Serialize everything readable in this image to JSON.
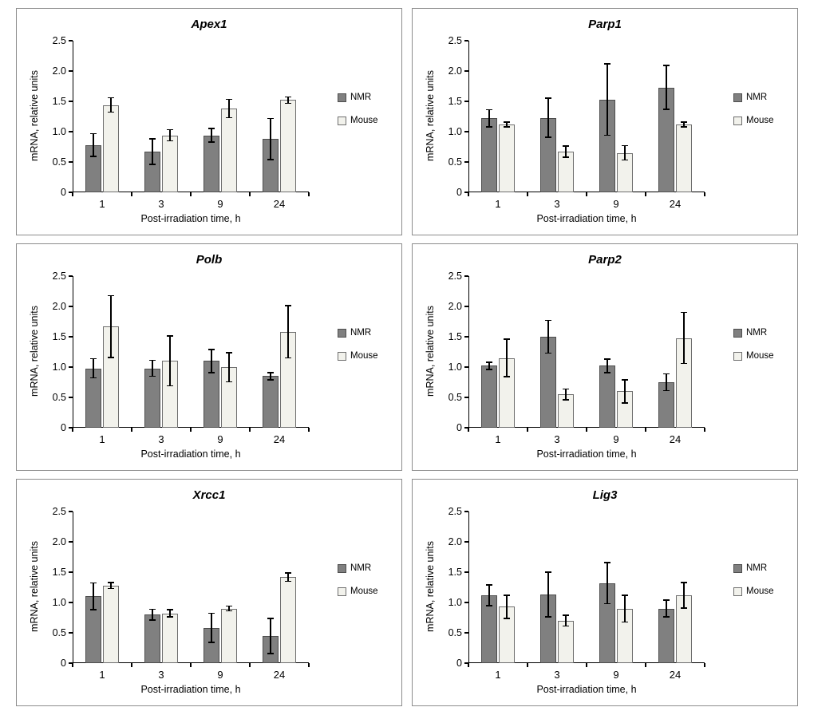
{
  "shared": {
    "ylabel": "mRNA, relative units",
    "xlabel": "Post-irradiation time, h",
    "ytick_labels": [
      "0",
      "0.5",
      "1.0",
      "1.5",
      "2.0",
      "2.5"
    ],
    "legend_labels": [
      "NMR",
      "Mouse"
    ]
  },
  "style": {
    "nmr_fill": "#808080",
    "nmr_border": "#4d4d4d",
    "mouse_fill": "#f2f2ec",
    "mouse_border": "#6e6e6e",
    "axis_color": "#000000",
    "error_bar_color": "#000000",
    "panel_border": "#8c8c8c",
    "background": "#ffffff"
  },
  "chart_data": [
    {
      "type": "bar",
      "title": "Apex1",
      "xlabel": "Post-irradiation time, h",
      "ylabel": "mRNA, relative units",
      "categories": [
        "1",
        "3",
        "9",
        "24"
      ],
      "ylim": [
        0,
        2.5
      ],
      "yticks": [
        0,
        0.5,
        1.0,
        1.5,
        2.0,
        2.5
      ],
      "grid": false,
      "legend_position": "right",
      "series": [
        {
          "name": "NMR",
          "values": [
            0.78,
            0.67,
            0.94,
            0.88
          ],
          "errors": [
            0.2,
            0.22,
            0.12,
            0.35
          ]
        },
        {
          "name": "Mouse",
          "values": [
            1.44,
            0.94,
            1.38,
            1.52
          ],
          "errors": [
            0.13,
            0.1,
            0.16,
            0.06
          ]
        }
      ]
    },
    {
      "type": "bar",
      "title": "Parp1",
      "xlabel": "Post-irradiation time, h",
      "ylabel": "mRNA, relative units",
      "categories": [
        "1",
        "3",
        "9",
        "24"
      ],
      "ylim": [
        0,
        2.5
      ],
      "yticks": [
        0,
        0.5,
        1.0,
        1.5,
        2.0,
        2.5
      ],
      "grid": false,
      "legend_position": "right",
      "series": [
        {
          "name": "NMR",
          "values": [
            1.22,
            1.23,
            1.53,
            1.73
          ],
          "errors": [
            0.15,
            0.33,
            0.6,
            0.37
          ]
        },
        {
          "name": "Mouse",
          "values": [
            1.12,
            0.67,
            0.65,
            1.12
          ],
          "errors": [
            0.05,
            0.1,
            0.13,
            0.05
          ]
        }
      ]
    },
    {
      "type": "bar",
      "title": "Polb",
      "xlabel": "Post-irradiation time, h",
      "ylabel": "mRNA, relative units",
      "categories": [
        "1",
        "3",
        "9",
        "24"
      ],
      "ylim": [
        0,
        2.5
      ],
      "yticks": [
        0,
        0.5,
        1.0,
        1.5,
        2.0,
        2.5
      ],
      "grid": false,
      "legend_position": "right",
      "series": [
        {
          "name": "NMR",
          "values": [
            0.98,
            0.98,
            1.1,
            0.85
          ],
          "errors": [
            0.17,
            0.14,
            0.2,
            0.07
          ]
        },
        {
          "name": "Mouse",
          "values": [
            1.67,
            1.1,
            1.0,
            1.58
          ],
          "errors": [
            0.52,
            0.42,
            0.25,
            0.44
          ]
        }
      ]
    },
    {
      "type": "bar",
      "title": "Parp2",
      "xlabel": "Post-irradiation time, h",
      "ylabel": "mRNA, relative units",
      "categories": [
        "1",
        "3",
        "9",
        "24"
      ],
      "ylim": [
        0,
        2.5
      ],
      "yticks": [
        0,
        0.5,
        1.0,
        1.5,
        2.0,
        2.5
      ],
      "grid": false,
      "legend_position": "right",
      "series": [
        {
          "name": "NMR",
          "values": [
            1.02,
            1.5,
            1.02,
            0.75
          ],
          "errors": [
            0.07,
            0.28,
            0.12,
            0.15
          ]
        },
        {
          "name": "Mouse",
          "values": [
            1.15,
            0.55,
            0.6,
            1.48
          ],
          "errors": [
            0.32,
            0.1,
            0.2,
            0.43
          ]
        }
      ]
    },
    {
      "type": "bar",
      "title": "Xrcc1",
      "xlabel": "Post-irradiation time, h",
      "ylabel": "mRNA, relative units",
      "categories": [
        "1",
        "3",
        "9",
        "24"
      ],
      "ylim": [
        0,
        2.5
      ],
      "yticks": [
        0,
        0.5,
        1.0,
        1.5,
        2.0,
        2.5
      ],
      "grid": false,
      "legend_position": "right",
      "series": [
        {
          "name": "NMR",
          "values": [
            1.1,
            0.8,
            0.58,
            0.45
          ],
          "errors": [
            0.23,
            0.1,
            0.25,
            0.3
          ]
        },
        {
          "name": "Mouse",
          "values": [
            1.28,
            0.82,
            0.9,
            1.42
          ],
          "errors": [
            0.06,
            0.07,
            0.05,
            0.08
          ]
        }
      ]
    },
    {
      "type": "bar",
      "title": "Lig3",
      "xlabel": "Post-irradiation time, h",
      "ylabel": "mRNA, relative units",
      "categories": [
        "1",
        "3",
        "9",
        "24"
      ],
      "ylim": [
        0,
        2.5
      ],
      "yticks": [
        0,
        0.5,
        1.0,
        1.5,
        2.0,
        2.5
      ],
      "grid": false,
      "legend_position": "right",
      "series": [
        {
          "name": "NMR",
          "values": [
            1.12,
            1.13,
            1.32,
            0.9
          ],
          "errors": [
            0.18,
            0.38,
            0.35,
            0.15
          ]
        },
        {
          "name": "Mouse",
          "values": [
            0.93,
            0.7,
            0.9,
            1.12
          ],
          "errors": [
            0.2,
            0.1,
            0.23,
            0.22
          ]
        }
      ]
    }
  ]
}
